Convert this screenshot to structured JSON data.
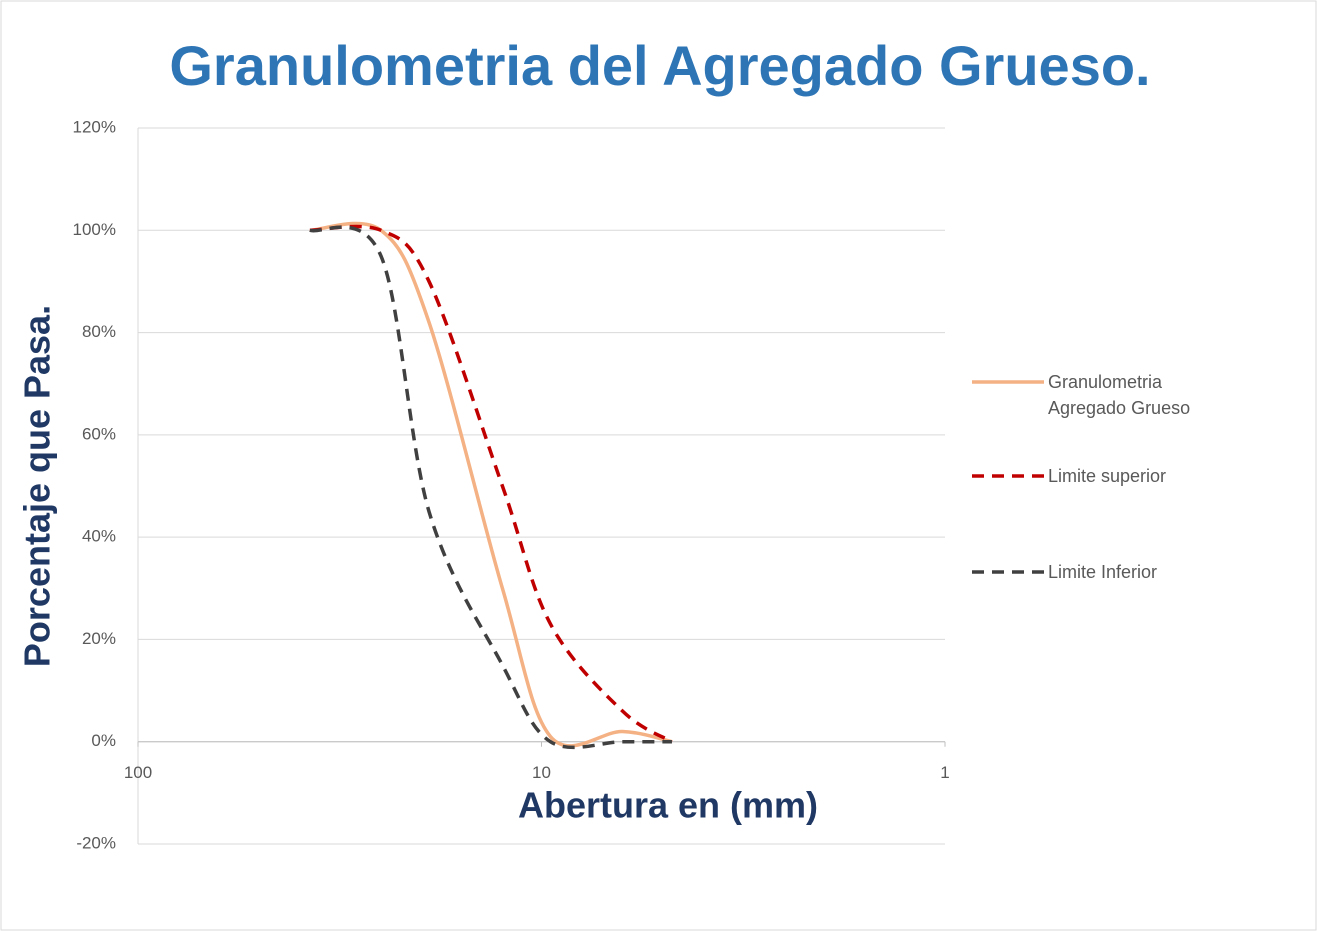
{
  "chart_data": {
    "type": "line",
    "title": "Granulometria del Agregado Grueso.",
    "xlabel": "Abertura en (mm)",
    "ylabel": "Porcentaje que Pasa.",
    "x": [
      37.5,
      25,
      19,
      12.5,
      9.5,
      6.3,
      4.75
    ],
    "xscale": "log",
    "xreversed": true,
    "xlim": [
      100,
      1
    ],
    "xticks": [
      100,
      10,
      1
    ],
    "ylim": [
      -20,
      120
    ],
    "yticks": [
      {
        "value": -20,
        "label": "-20%"
      },
      {
        "value": 0,
        "label": "0%"
      },
      {
        "value": 20,
        "label": "20%"
      },
      {
        "value": 40,
        "label": "40%"
      },
      {
        "value": 60,
        "label": "60%"
      },
      {
        "value": 80,
        "label": "80%"
      },
      {
        "value": 100,
        "label": "100%"
      },
      {
        "value": 120,
        "label": "120%"
      }
    ],
    "grid": true,
    "smooth": true,
    "legend": "right",
    "series": [
      {
        "name": "Granulometria Agregado Grueso",
        "color": "#f4b183",
        "dash": false,
        "values": [
          100,
          100,
          82,
          30,
          1,
          2,
          0
        ]
      },
      {
        "name": "Limite superior",
        "color": "#c00000",
        "dash": true,
        "values": [
          100,
          100,
          90,
          50,
          23,
          6,
          0
        ]
      },
      {
        "name": "Limite Inferior",
        "color": "#404040",
        "dash": true,
        "values": [
          100,
          95,
          45,
          15,
          0,
          0,
          0
        ]
      }
    ]
  }
}
